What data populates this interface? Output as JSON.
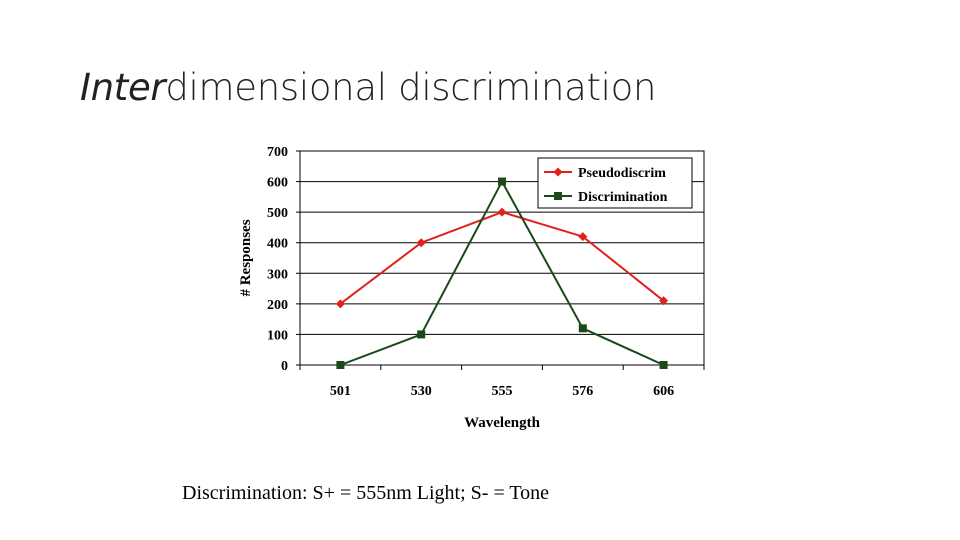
{
  "slide": {
    "title_italic": "Inter",
    "title_rest": "dimensional discrimination",
    "caption": "Discrimination: S+ = 555nm Light; S- = Tone"
  },
  "chart_data": {
    "type": "line",
    "categories": [
      "501",
      "530",
      "555",
      "576",
      "606"
    ],
    "series": [
      {
        "name": "Pseudodiscrim",
        "values": [
          200,
          400,
          500,
          420,
          210
        ],
        "color": "#e0201b",
        "marker": "diamond"
      },
      {
        "name": "Discrimination",
        "values": [
          0,
          100,
          600,
          120,
          0
        ],
        "color": "#1a4a1a",
        "marker": "square"
      }
    ],
    "title": "",
    "xlabel": "Wavelength",
    "ylabel": "# Responses",
    "ylim": [
      0,
      700
    ],
    "yticks": [
      0,
      100,
      200,
      300,
      400,
      500,
      600,
      700
    ],
    "grid": true,
    "legend_position": "top-right"
  }
}
